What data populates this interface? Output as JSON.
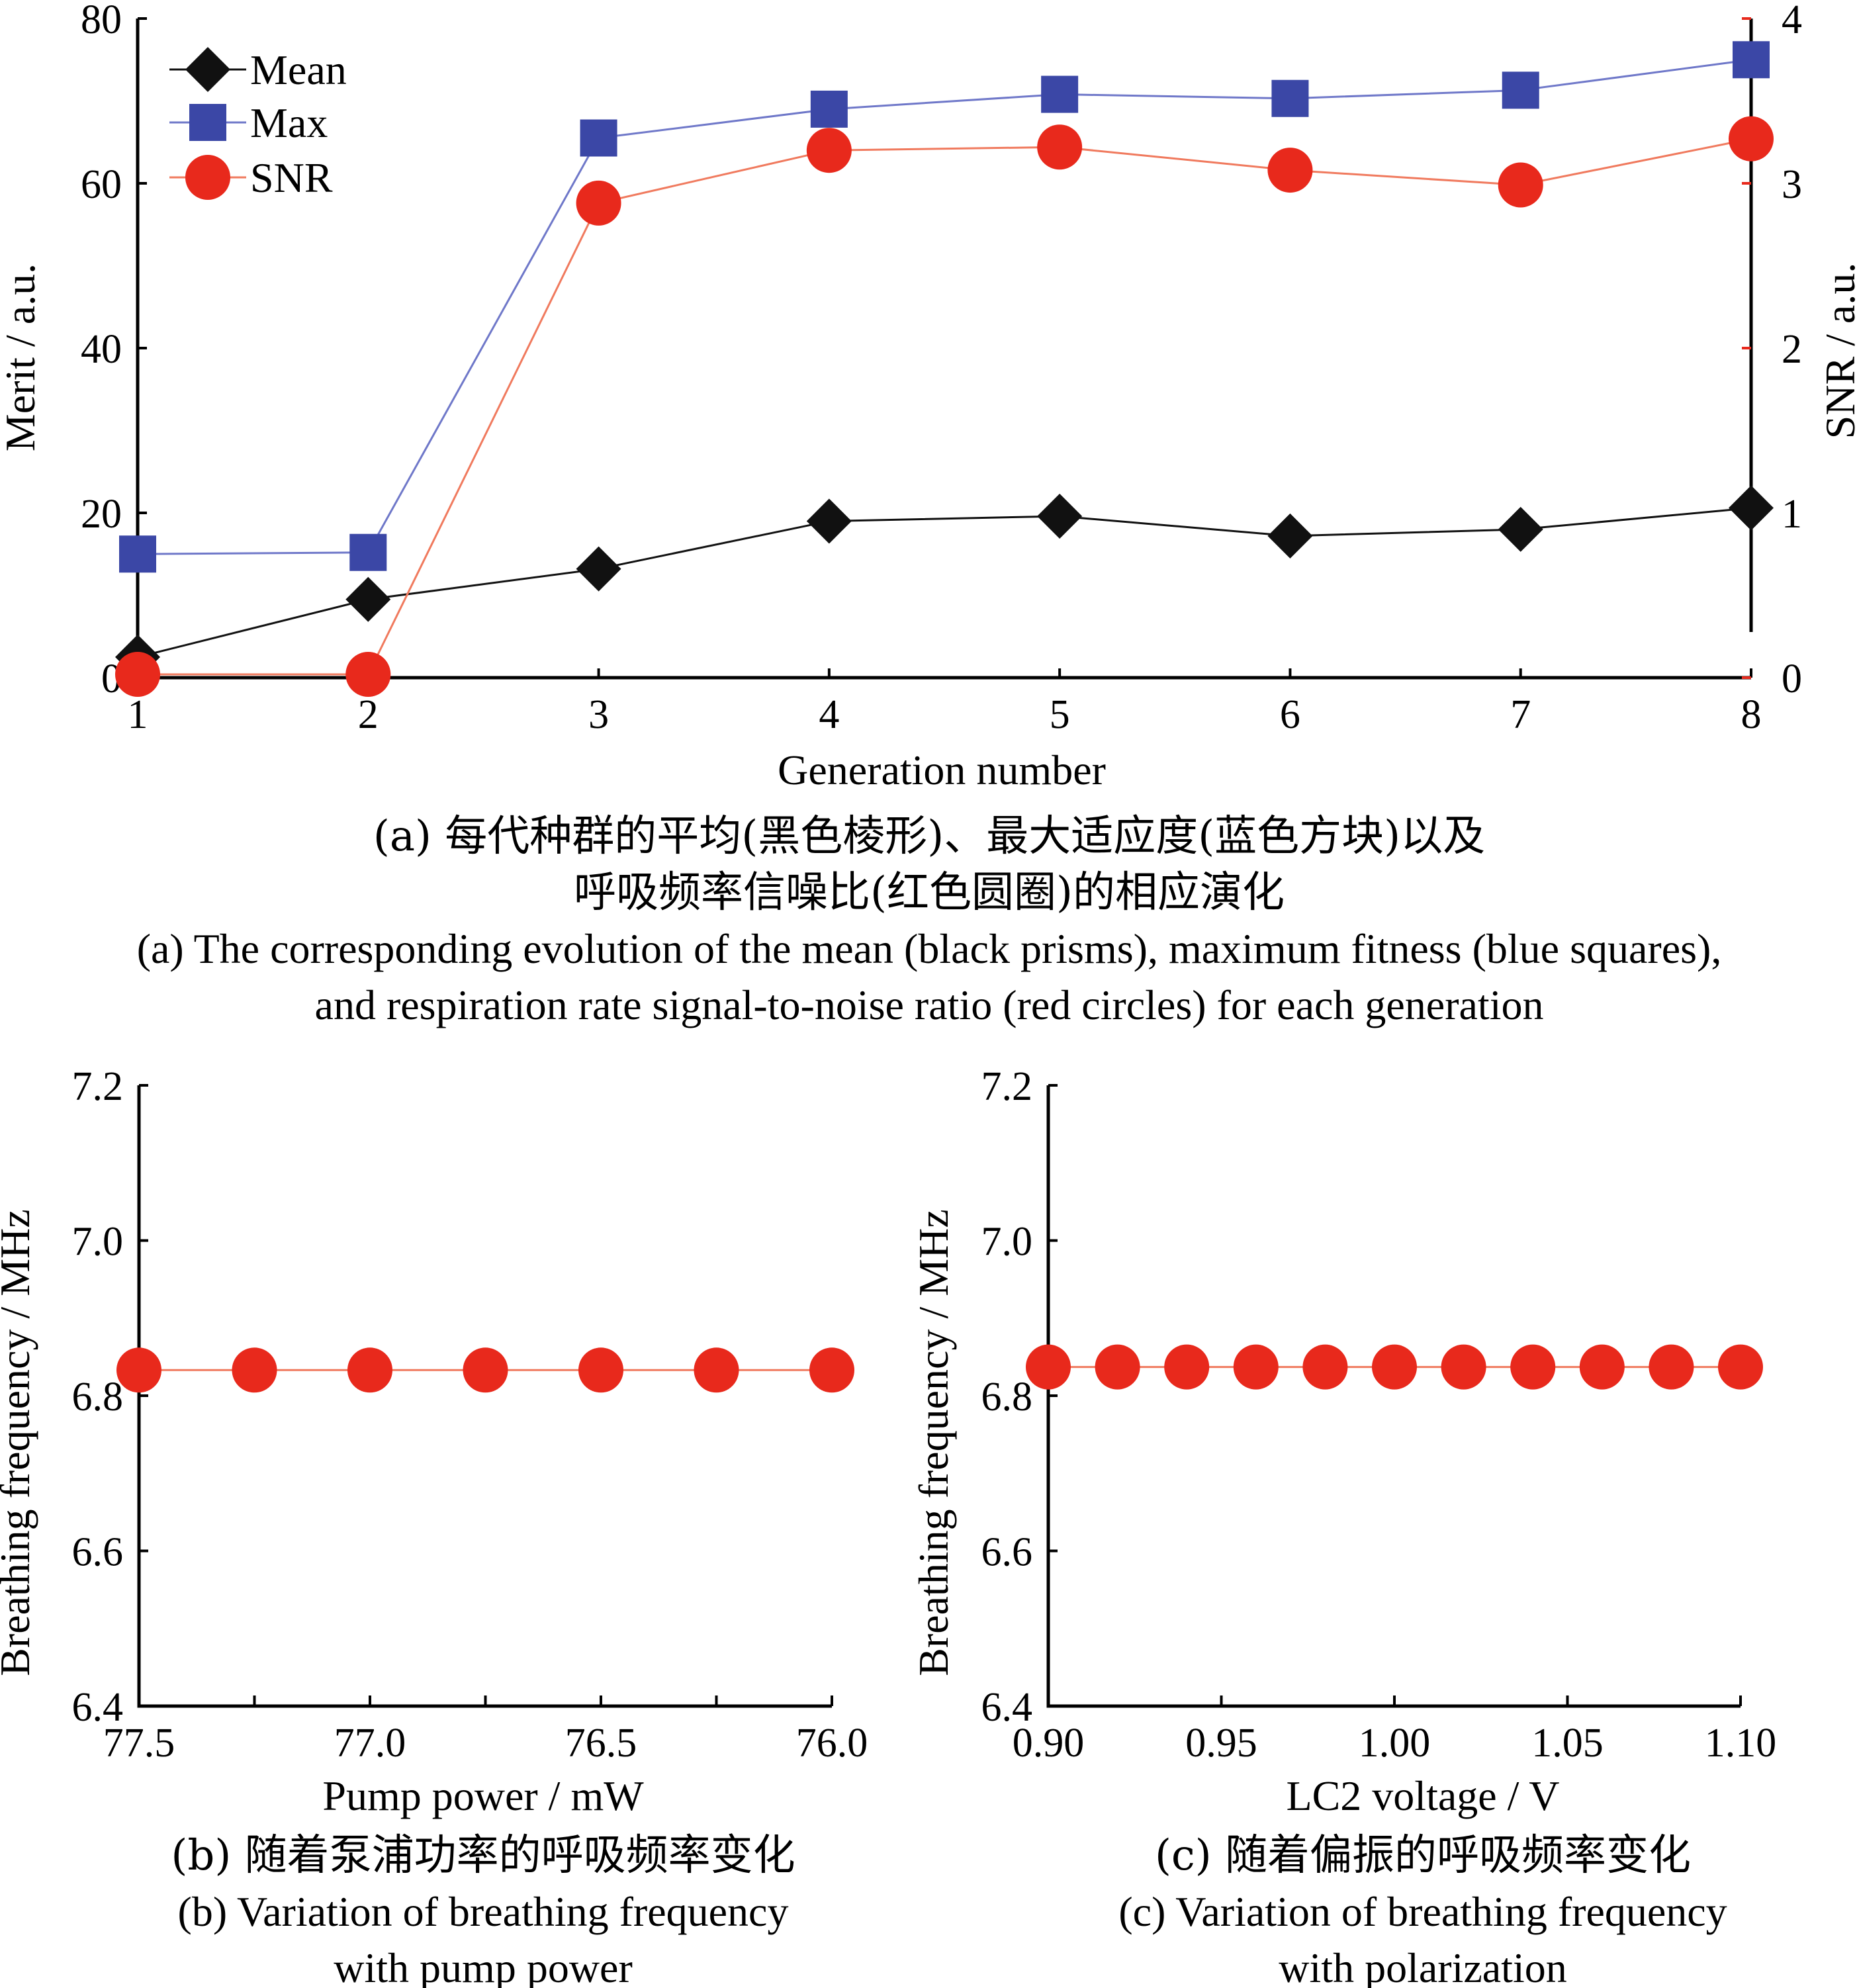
{
  "colors": {
    "mean": "#111111",
    "max": "#3b47a6",
    "max_line": "#6f78c9",
    "snr": "#e8291c",
    "snr_line": "#f07a5e"
  },
  "icons": {
    "mean": "diamond-marker",
    "max": "square-marker",
    "snr": "circle-marker"
  },
  "captions": {
    "a_cn_line1": "(a) 每代种群的平均(黑色棱形)、最大适应度(蓝色方块)以及",
    "a_cn_line2": "呼吸频率信噪比(红色圆圈)的相应演化",
    "a_en_line1": "(a) The corresponding evolution of the mean (black prisms), maximum fitness (blue squares),",
    "a_en_line2": "and respiration rate signal-to-noise ratio (red circles) for each generation",
    "b_cn": "(b) 随着泵浦功率的呼吸频率变化",
    "b_en_line1": "(b) Variation of breathing frequency",
    "b_en_line2": "with pump power",
    "c_cn": "(c) 随着偏振的呼吸频率变化",
    "c_en_line1": "(c) Variation of breathing frequency",
    "c_en_line2": "with polarization"
  },
  "chart_data": [
    {
      "id": "a",
      "type": "line",
      "x": [
        1,
        2,
        3,
        4,
        5,
        6,
        7,
        8
      ],
      "xlabel": "Generation number",
      "ylabel": "Merit / a.u.",
      "y2label": "SNR / a.u.",
      "xlim": [
        1,
        8
      ],
      "ylim": [
        0,
        80
      ],
      "y2lim": [
        0,
        4
      ],
      "xticks": [
        "1",
        "2",
        "3",
        "4",
        "5",
        "6",
        "7",
        "8"
      ],
      "yticks": [
        "0",
        "20",
        "40",
        "60",
        "80"
      ],
      "y2ticks": [
        "0",
        "1",
        "2",
        "3",
        "4"
      ],
      "legend": "top-left",
      "grid": false,
      "series": [
        {
          "name": "Mean",
          "axis": "left",
          "marker": "diamond",
          "values": [
            2.5,
            9.5,
            13.2,
            19.0,
            19.6,
            17.2,
            18.0,
            20.6
          ]
        },
        {
          "name": "Max",
          "axis": "left",
          "marker": "square",
          "values": [
            15.0,
            15.2,
            65.5,
            69.0,
            70.8,
            70.3,
            71.3,
            75.0
          ]
        },
        {
          "name": "SNR",
          "axis": "right",
          "marker": "circle",
          "values": [
            0.02,
            0.02,
            2.88,
            3.2,
            3.22,
            3.08,
            2.99,
            3.27
          ]
        }
      ]
    },
    {
      "id": "b",
      "type": "line",
      "x": [
        77.5,
        77.25,
        77.0,
        76.75,
        76.5,
        76.25,
        76.0
      ],
      "xlabel": "Pump power / mW",
      "ylabel": "Breathing frequency / MHz",
      "xlim": [
        77.5,
        76.0
      ],
      "ylim": [
        6.4,
        7.2
      ],
      "xticks": [
        "77.5",
        "77.0",
        "76.5",
        "76.0"
      ],
      "yticks": [
        "6.4",
        "6.6",
        "6.8",
        "7.0",
        "7.2"
      ],
      "grid": false,
      "series": [
        {
          "marker": "circle",
          "values": [
            6.833,
            6.833,
            6.833,
            6.833,
            6.833,
            6.833,
            6.833
          ]
        }
      ]
    },
    {
      "id": "c",
      "type": "line",
      "x": [
        0.9,
        0.92,
        0.94,
        0.96,
        0.98,
        1.0,
        1.02,
        1.04,
        1.06,
        1.08,
        1.1
      ],
      "xlabel": "LC2 voltage / V",
      "ylabel": "Breathing frequency / MHz",
      "xlim": [
        0.9,
        1.1
      ],
      "ylim": [
        6.4,
        7.2
      ],
      "xticks": [
        "0.90",
        "0.95",
        "1.00",
        "1.05",
        "1.10"
      ],
      "yticks": [
        "6.4",
        "6.6",
        "6.8",
        "7.0",
        "7.2"
      ],
      "grid": false,
      "series": [
        {
          "marker": "circle",
          "values": [
            6.837,
            6.837,
            6.837,
            6.837,
            6.837,
            6.837,
            6.837,
            6.837,
            6.837,
            6.837,
            6.837
          ]
        }
      ]
    }
  ]
}
